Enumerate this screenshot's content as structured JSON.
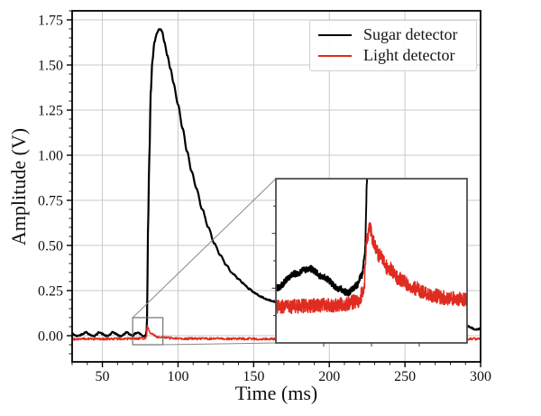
{
  "figure": {
    "background": "#ffffff"
  },
  "chart_data": {
    "type": "line",
    "title": "",
    "xlabel": "Time (ms)",
    "ylabel": "Amplitude (V)",
    "xlim": [
      30,
      300
    ],
    "ylim": [
      -0.145,
      1.8
    ],
    "grid": true,
    "grid_color": "#c9c9c9",
    "axis_color": "#000000",
    "legend_position": "upper right",
    "xticks": {
      "values": [
        50,
        100,
        150,
        200,
        250,
        300
      ],
      "labels": [
        "50",
        "100",
        "150",
        "200",
        "250",
        "300"
      ]
    },
    "yticks": {
      "values": [
        0.0,
        0.25,
        0.5,
        0.75,
        1.0,
        1.25,
        1.5,
        1.75
      ],
      "labels": [
        "0.00",
        "0.25",
        "0.50",
        "0.75",
        "1.00",
        "1.25",
        "1.50",
        "1.75"
      ]
    },
    "x_minor_step": 10,
    "y_minor_step": 0.05,
    "series": [
      {
        "name": "Sugar detector",
        "color": "#000000",
        "linewidth": 2.2,
        "inset_linewidth": 1.9,
        "noise": 0.003,
        "keypoints": [
          [
            30,
            0.012
          ],
          [
            31.5,
            0.004
          ],
          [
            33,
            -0.002
          ],
          [
            35,
            0.002
          ],
          [
            37,
            0.01
          ],
          [
            39,
            0.02
          ],
          [
            41,
            0.01
          ],
          [
            43,
            0.0
          ],
          [
            44.5,
            -0.002
          ],
          [
            46,
            0.006
          ],
          [
            48,
            0.02
          ],
          [
            50,
            0.01
          ],
          [
            52,
            0.0
          ],
          [
            53.5,
            -0.002
          ],
          [
            55,
            0.006
          ],
          [
            57,
            0.02
          ],
          [
            59,
            0.01
          ],
          [
            61,
            0.0
          ],
          [
            62.5,
            -0.002
          ],
          [
            64,
            0.006
          ],
          [
            66,
            0.02
          ],
          [
            68,
            0.008
          ],
          [
            70,
            0.0
          ],
          [
            72,
            0.013
          ],
          [
            73.5,
            0.018
          ],
          [
            75,
            0.01
          ],
          [
            76.5,
            0.0
          ],
          [
            77.5,
            -0.004
          ],
          [
            78.4,
            0.002
          ],
          [
            79,
            0.012
          ],
          [
            79.3,
            0.032
          ],
          [
            79.55,
            0.1
          ],
          [
            79.8,
            0.3
          ],
          [
            80.2,
            0.62
          ],
          [
            81,
            0.98
          ],
          [
            82,
            1.35
          ],
          [
            83,
            1.52
          ],
          [
            84.5,
            1.63
          ],
          [
            86,
            1.675
          ],
          [
            87.5,
            1.697
          ],
          [
            88.5,
            1.7
          ],
          [
            89.5,
            1.682
          ],
          [
            91,
            1.625
          ],
          [
            93,
            1.55
          ],
          [
            95,
            1.48
          ],
          [
            97,
            1.4
          ],
          [
            100,
            1.28
          ],
          [
            103,
            1.15
          ],
          [
            106,
            1.02
          ],
          [
            109,
            0.91
          ],
          [
            112,
            0.82
          ],
          [
            116,
            0.7
          ],
          [
            120,
            0.6
          ],
          [
            124,
            0.51
          ],
          [
            128,
            0.445
          ],
          [
            132,
            0.39
          ],
          [
            136,
            0.345
          ],
          [
            140,
            0.315
          ],
          [
            143,
            0.29
          ],
          [
            147,
            0.26
          ],
          [
            151,
            0.235
          ],
          [
            155,
            0.215
          ],
          [
            159,
            0.2
          ],
          [
            163,
            0.19
          ],
          [
            167,
            0.175
          ],
          [
            172,
            0.155
          ],
          [
            178,
            0.135
          ],
          [
            185,
            0.115
          ],
          [
            195,
            0.095
          ],
          [
            210,
            0.075
          ],
          [
            225,
            0.063
          ],
          [
            240,
            0.055
          ],
          [
            255,
            0.05
          ],
          [
            270,
            0.047
          ],
          [
            283,
            0.045
          ],
          [
            288,
            0.05
          ],
          [
            291,
            0.055
          ],
          [
            293.5,
            0.045
          ],
          [
            296,
            0.035
          ],
          [
            298,
            0.036
          ],
          [
            300,
            0.04
          ]
        ]
      },
      {
        "name": "Light detector",
        "color": "#e02b20",
        "linewidth": 1.5,
        "inset_linewidth": 1.5,
        "noise": 0.0065,
        "keypoints": [
          [
            30,
            -0.018
          ],
          [
            50,
            -0.018
          ],
          [
            65,
            -0.017
          ],
          [
            70,
            -0.017
          ],
          [
            74,
            -0.016
          ],
          [
            77,
            -0.015
          ],
          [
            78.6,
            -0.012
          ],
          [
            79.2,
            -0.002
          ],
          [
            79.5,
            0.042
          ],
          [
            79.8,
            0.056
          ],
          [
            80.2,
            0.042
          ],
          [
            80.8,
            0.03
          ],
          [
            81.8,
            0.018
          ],
          [
            83,
            0.008
          ],
          [
            84.5,
            0.0
          ],
          [
            86,
            -0.006
          ],
          [
            88,
            -0.009
          ],
          [
            91,
            -0.011
          ],
          [
            95,
            -0.013
          ],
          [
            105,
            -0.016
          ],
          [
            130,
            -0.017
          ],
          [
            160,
            -0.018
          ],
          [
            200,
            -0.018
          ],
          [
            250,
            -0.018
          ],
          [
            300,
            -0.018
          ]
        ]
      }
    ],
    "inset": {
      "xlim": [
        70,
        90
      ],
      "ylim": [
        -0.05,
        0.1
      ],
      "xticks": [
        75,
        80,
        85
      ],
      "y_tick_step": 0.025,
      "border_color": "#444444",
      "source_rect": {
        "x": [
          70,
          90
        ],
        "y": [
          -0.05,
          0.1
        ]
      },
      "connector_color": "#888888"
    }
  }
}
